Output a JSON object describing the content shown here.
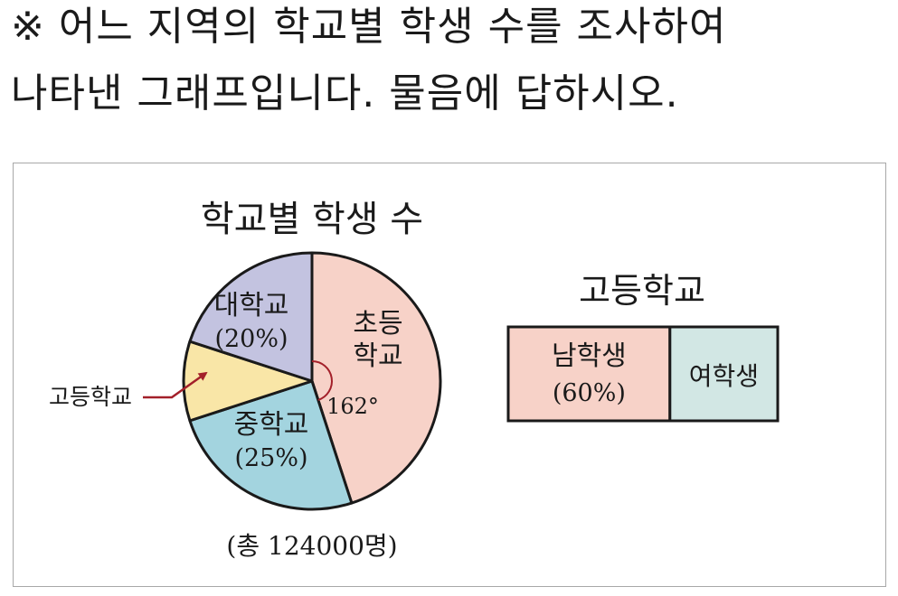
{
  "prompt": {
    "line1": "※ 어느 지역의 학교별 학생 수를 조사하여",
    "line2": "나타낸 그래프입니다. 물음에 답하시오."
  },
  "chart_data": [
    {
      "type": "pie",
      "title": "학교별 학생 수",
      "start_angle_deg": 0,
      "direction": "clockwise",
      "slices": [
        {
          "label_lines": [
            "초등",
            "학교"
          ],
          "percent_label": "",
          "degrees": 162,
          "color": "#f7d2c8"
        },
        {
          "label_lines": [
            "중학교"
          ],
          "percent_label": "(25%)",
          "degrees": 90,
          "color": "#a3d4df"
        },
        {
          "label_lines": [
            "고등학교"
          ],
          "percent_label": "",
          "degrees": 36,
          "color": "#f9e6a7",
          "external_label": true
        },
        {
          "label_lines": [
            "대학교"
          ],
          "percent_label": "(20%)",
          "degrees": 72,
          "color": "#c3c3e0"
        }
      ],
      "angle_annotation": "162°",
      "total_label": "(총 124000명)"
    },
    {
      "type": "bar",
      "orientation": "horizontal-stacked",
      "title": "고등학교",
      "segments": [
        {
          "label": "남학생",
          "percent_label": "(60%)",
          "value": 60,
          "color": "#f7d2c8"
        },
        {
          "label": "여학생",
          "percent_label": "",
          "value": 40,
          "color": "#d2e7e4"
        }
      ]
    }
  ]
}
